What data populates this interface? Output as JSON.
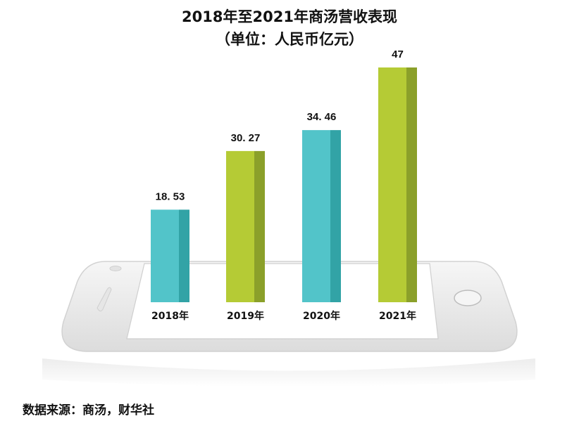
{
  "title_line1": "2018年至2021年商汤营收表现",
  "title_line2": "（单位：人民币亿元）",
  "source": "数据来源：商汤，财华社",
  "colors": {
    "teal_front": "#52c4c9",
    "teal_side": "#32a3a6",
    "green_front": "#b5cb35",
    "green_side": "#8ba02a",
    "phone_body": "#ececec",
    "phone_screen": "#ffffff"
  },
  "chart_data": {
    "type": "bar",
    "title": "2018年至2021年商汤营收表现",
    "subtitle": "（单位：人民币亿元）",
    "categories": [
      "2018年",
      "2019年",
      "2020年",
      "2021年"
    ],
    "values": [
      18.53,
      30.27,
      34.46,
      47
    ],
    "value_labels": [
      "18. 53",
      "30. 27",
      "34. 46",
      "47"
    ],
    "bar_colors": [
      "teal",
      "green",
      "teal",
      "green"
    ],
    "ylim": [
      0,
      47
    ],
    "grid": false,
    "legend": "none"
  }
}
